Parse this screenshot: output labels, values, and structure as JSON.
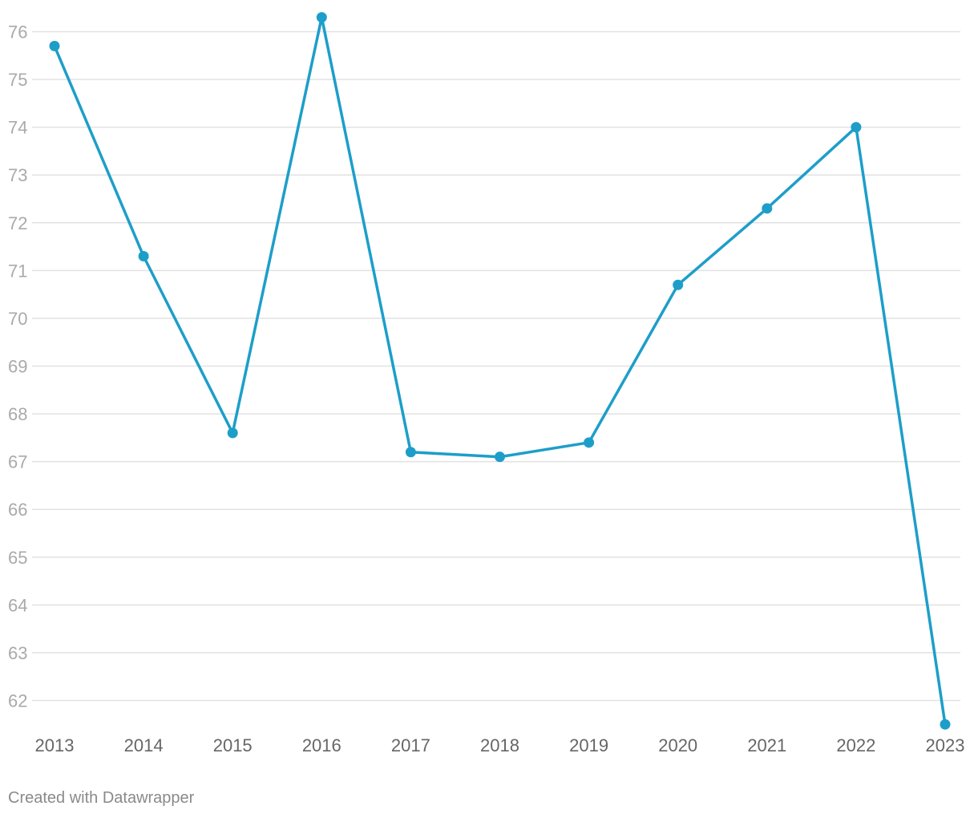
{
  "footer": {
    "credit": "Created with Datawrapper"
  },
  "colors": {
    "series": "#1d9ec9",
    "grid": "#e2e2e2",
    "ytick_text": "#aaaaaa",
    "xtick_text": "#666666",
    "footer_text": "#8a8a8a"
  },
  "chart_data": {
    "type": "line",
    "title": "",
    "xlabel": "",
    "ylabel": "",
    "categories": [
      "2013",
      "2014",
      "2015",
      "2016",
      "2017",
      "2018",
      "2019",
      "2020",
      "2021",
      "2022",
      "2023"
    ],
    "series": [
      {
        "values": [
          75.7,
          71.3,
          67.6,
          76.3,
          67.2,
          67.1,
          67.4,
          70.7,
          72.3,
          74.0,
          61.5
        ]
      }
    ],
    "yticks": [
      62,
      63,
      64,
      65,
      66,
      67,
      68,
      69,
      70,
      71,
      72,
      73,
      74,
      75,
      76
    ],
    "ylim": [
      61.5,
      76.3
    ],
    "grid": true,
    "markers": true
  }
}
